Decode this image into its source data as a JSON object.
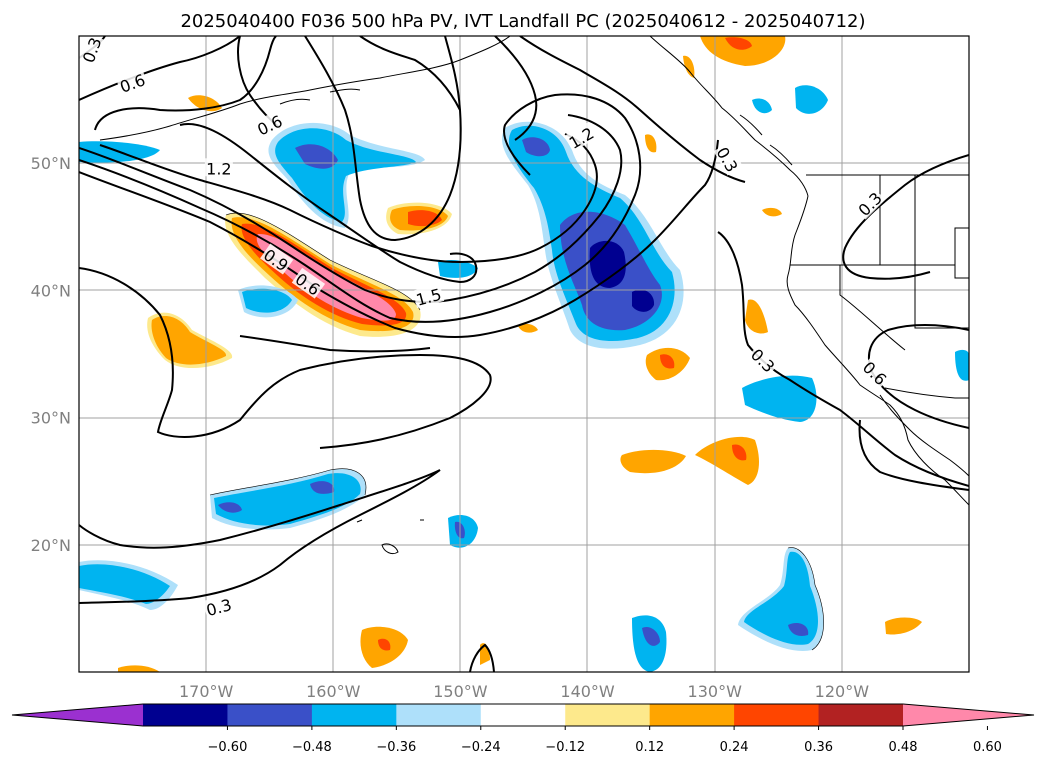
{
  "figure": {
    "title": "2025040400 F036 500 hPa PV, IVT Landfall PC (2025040612 - 2025040712)"
  },
  "map": {
    "lon_range": [
      -180,
      -110
    ],
    "lat_range": [
      10,
      60
    ],
    "lon_ticks": [
      {
        "lon": -170,
        "label": "170°W"
      },
      {
        "lon": -160,
        "label": "160°W"
      },
      {
        "lon": -150,
        "label": "150°W"
      },
      {
        "lon": -140,
        "label": "140°W"
      },
      {
        "lon": -130,
        "label": "130°W"
      },
      {
        "lon": -120,
        "label": "120°W"
      }
    ],
    "lat_ticks": [
      {
        "lat": 20,
        "label": "20°N"
      },
      {
        "lat": 30,
        "label": "30°N"
      },
      {
        "lat": 40,
        "label": "40°N"
      },
      {
        "lat": 50,
        "label": "50°N"
      }
    ],
    "grid": true
  },
  "colorbar": {
    "extend": "both",
    "colors": [
      "#9b30d0",
      "#000090",
      "#3a50c8",
      "#00b4f0",
      "#aee0fa",
      "#ffffff",
      "#fde98c",
      "#ffa500",
      "#ff4500",
      "#b22222",
      "#ff88aa"
    ],
    "ticks": [
      "−0.60",
      "−0.48",
      "−0.36",
      "−0.24",
      "−0.12",
      "0.12",
      "0.24",
      "0.36",
      "0.48",
      "0.60"
    ]
  },
  "contour_labels": [
    {
      "text": "0.3",
      "lon": -179,
      "lat": 58.9,
      "rot": -70
    },
    {
      "text": "0.6",
      "lon": -175.8,
      "lat": 56.3,
      "rot": -20
    },
    {
      "text": "0.6",
      "lon": -165,
      "lat": 53,
      "rot": -25
    },
    {
      "text": "1.2",
      "lon": -169,
      "lat": 49.6,
      "rot": 0
    },
    {
      "text": "0.9",
      "lon": -164.5,
      "lat": 42.4,
      "rot": 35
    },
    {
      "text": "0.6",
      "lon": -162,
      "lat": 40.5,
      "rot": 35
    },
    {
      "text": "1.5",
      "lon": -152.5,
      "lat": 39.5,
      "rot": -15
    },
    {
      "text": "1.2",
      "lon": -140.5,
      "lat": 52,
      "rot": -30
    },
    {
      "text": "0.3",
      "lon": -129,
      "lat": 50.3,
      "rot": 60
    },
    {
      "text": "0.3",
      "lon": -117.8,
      "lat": 46.8,
      "rot": -45
    },
    {
      "text": "0.3",
      "lon": -126.2,
      "lat": 34.5,
      "rot": 45
    },
    {
      "text": "0.6",
      "lon": -117.4,
      "lat": 33.5,
      "rot": 45
    },
    {
      "text": "0.3",
      "lon": -169,
      "lat": 15.1,
      "rot": -15
    }
  ]
}
